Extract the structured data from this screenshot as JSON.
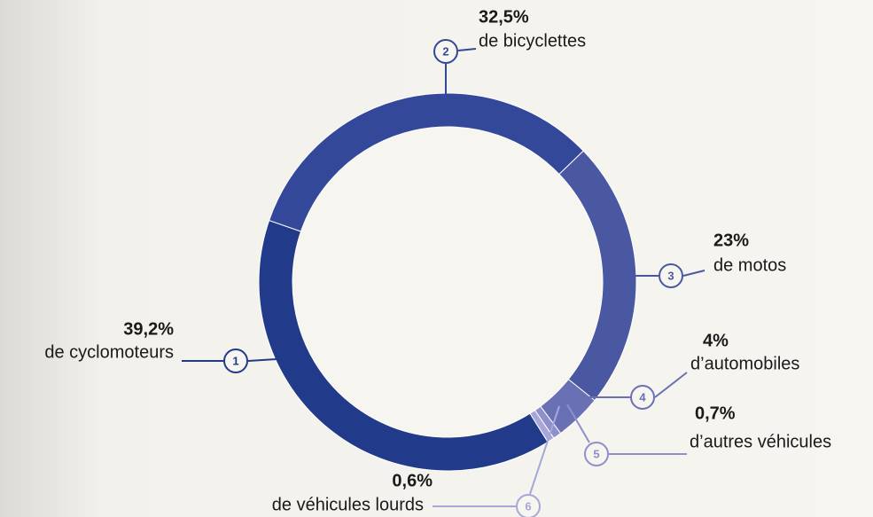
{
  "chart_data": {
    "type": "donut",
    "categories": [
      "de cyclomoteurs",
      "de bicyclettes",
      "de motos",
      "d’automobiles",
      "d’autres véhicules",
      "de véhicules lourds"
    ],
    "values": [
      39.2,
      32.5,
      23,
      4,
      0.7,
      0.6
    ],
    "value_labels": [
      "39,2%",
      "32,5%",
      "23%",
      "4%",
      "0,7%",
      "0,6%"
    ],
    "keys": [
      "1",
      "2",
      "3",
      "4",
      "5",
      "6"
    ],
    "colors": [
      "#223a8a",
      "#34489a",
      "#4a58a2",
      "#6a70b4",
      "#8e90c9",
      "#a6a7d8"
    ]
  }
}
